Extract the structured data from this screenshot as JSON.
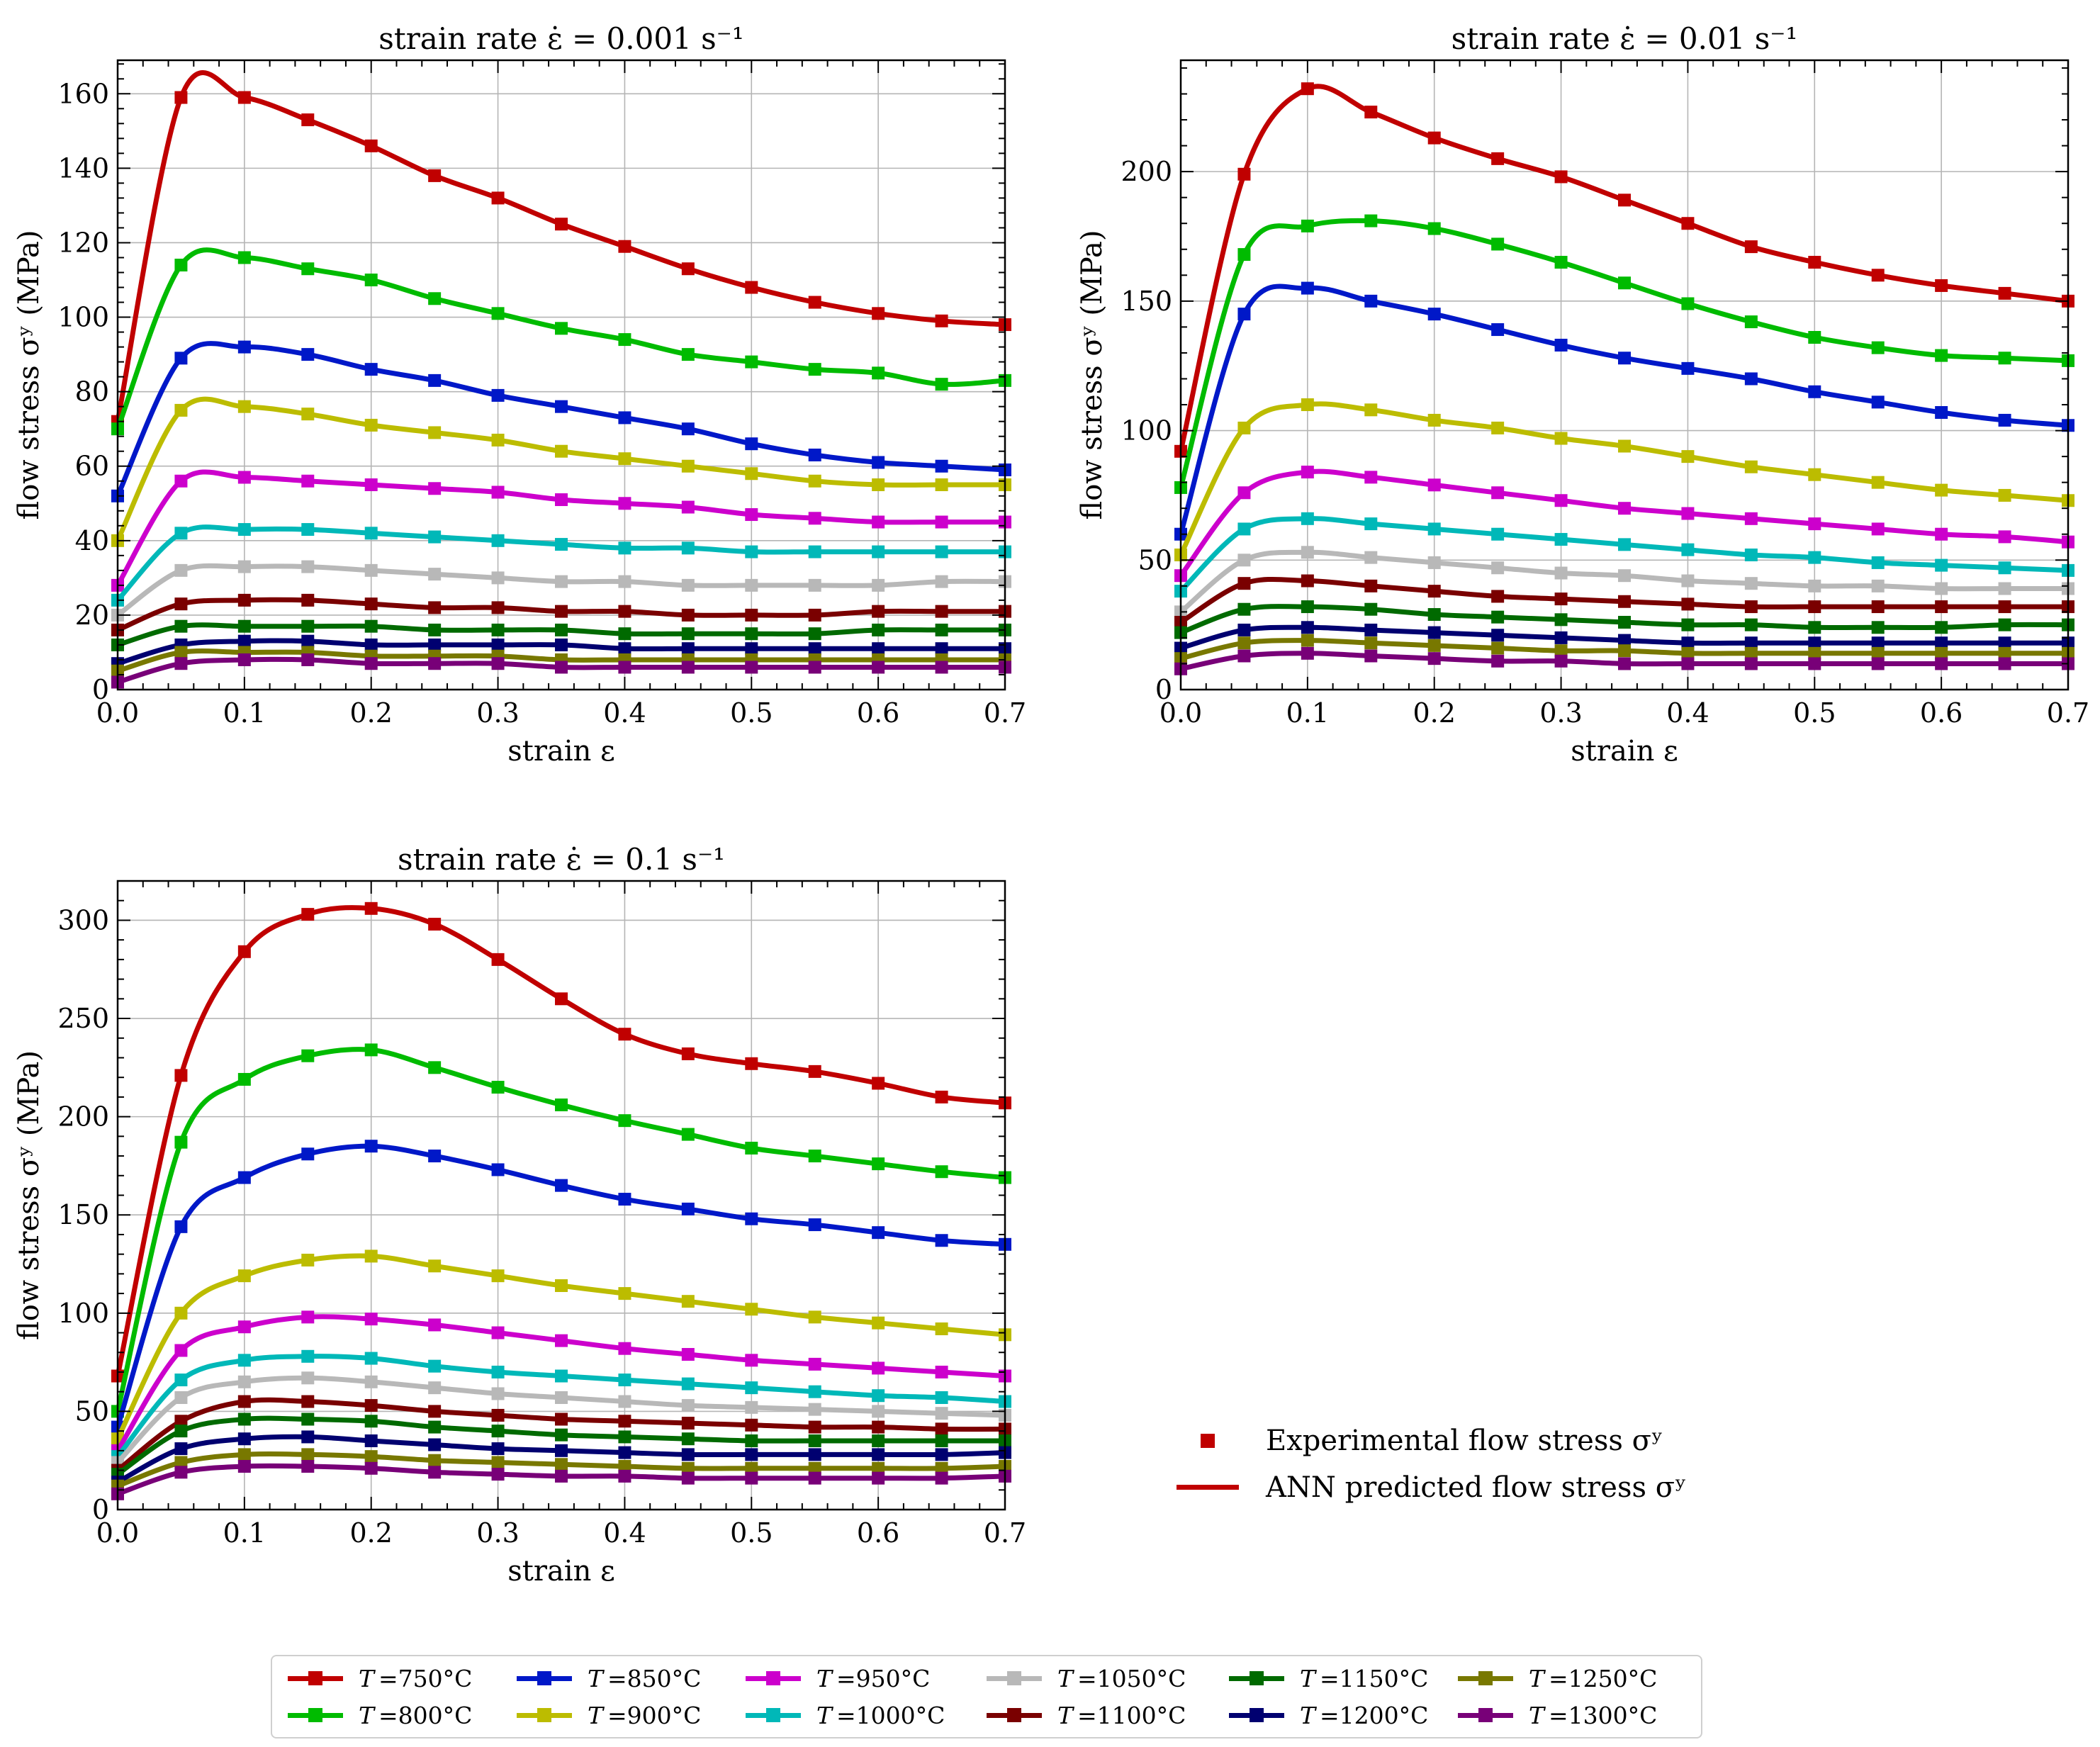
{
  "chart_data": [
    {
      "type": "line",
      "title": "strain rate ε̇ = 0.001 s⁻¹",
      "xlabel": "strain ε",
      "ylabel": "flow stress σʸ (MPa)",
      "xlim": [
        0,
        0.7
      ],
      "ylim": [
        0,
        169
      ],
      "xticks": [
        "0.0",
        "0.1",
        "0.2",
        "0.3",
        "0.4",
        "0.5",
        "0.6",
        "0.7"
      ],
      "yticks": [
        "0",
        "20",
        "40",
        "60",
        "80",
        "100",
        "120",
        "140",
        "160"
      ],
      "ytick_values": [
        0,
        20,
        40,
        60,
        80,
        100,
        120,
        140,
        160
      ],
      "grid": true,
      "x": [
        0,
        0.05,
        0.1,
        0.15,
        0.2,
        0.25,
        0.3,
        0.35,
        0.4,
        0.45,
        0.5,
        0.55,
        0.6,
        0.65,
        0.7
      ],
      "series": [
        {
          "name": "T =750°C",
          "values": [
            72,
            159,
            159,
            153,
            146,
            138,
            132,
            125,
            119,
            113,
            108,
            104,
            101,
            99,
            98
          ]
        },
        {
          "name": "T =800°C",
          "values": [
            70,
            114,
            116,
            113,
            110,
            105,
            101,
            97,
            94,
            90,
            88,
            86,
            85,
            82,
            83
          ]
        },
        {
          "name": "T =850°C",
          "values": [
            52,
            89,
            92,
            90,
            86,
            83,
            79,
            76,
            73,
            70,
            66,
            63,
            61,
            60,
            59
          ]
        },
        {
          "name": "T =900°C",
          "values": [
            40,
            75,
            76,
            74,
            71,
            69,
            67,
            64,
            62,
            60,
            58,
            56,
            55,
            55,
            55
          ]
        },
        {
          "name": "T =950°C",
          "values": [
            28,
            56,
            57,
            56,
            55,
            54,
            53,
            51,
            50,
            49,
            47,
            46,
            45,
            45,
            45
          ]
        },
        {
          "name": "T =1000°C",
          "values": [
            24,
            42,
            43,
            43,
            42,
            41,
            40,
            39,
            38,
            38,
            37,
            37,
            37,
            37,
            37
          ]
        },
        {
          "name": "T =1050°C",
          "values": [
            20,
            32,
            33,
            33,
            32,
            31,
            30,
            29,
            29,
            28,
            28,
            28,
            28,
            29,
            29
          ]
        },
        {
          "name": "T =1100°C",
          "values": [
            16,
            23,
            24,
            24,
            23,
            22,
            22,
            21,
            21,
            20,
            20,
            20,
            21,
            21,
            21
          ]
        },
        {
          "name": "T =1150°C",
          "values": [
            12,
            17,
            17,
            17,
            17,
            16,
            16,
            16,
            15,
            15,
            15,
            15,
            16,
            16,
            16
          ]
        },
        {
          "name": "T =1200°C",
          "values": [
            7,
            12,
            13,
            13,
            12,
            12,
            12,
            12,
            11,
            11,
            11,
            11,
            11,
            11,
            11
          ]
        },
        {
          "name": "T =1250°C",
          "values": [
            5,
            10,
            10,
            10,
            9,
            9,
            9,
            8,
            8,
            8,
            8,
            8,
            8,
            8,
            8
          ]
        },
        {
          "name": "T =1300°C",
          "values": [
            2,
            7,
            8,
            8,
            7,
            7,
            7,
            6,
            6,
            6,
            6,
            6,
            6,
            6,
            6
          ]
        }
      ]
    },
    {
      "type": "line",
      "title": "strain rate ε̇ = 0.01 s⁻¹",
      "xlabel": "strain ε",
      "ylabel": "flow stress σʸ (MPa)",
      "xlim": [
        0,
        0.7
      ],
      "ylim": [
        0,
        243
      ],
      "xticks": [
        "0.0",
        "0.1",
        "0.2",
        "0.3",
        "0.4",
        "0.5",
        "0.6",
        "0.7"
      ],
      "yticks": [
        "0",
        "50",
        "100",
        "150",
        "200"
      ],
      "ytick_values": [
        0,
        50,
        100,
        150,
        200
      ],
      "grid": true,
      "x": [
        0,
        0.05,
        0.1,
        0.15,
        0.2,
        0.25,
        0.3,
        0.35,
        0.4,
        0.45,
        0.5,
        0.55,
        0.6,
        0.65,
        0.7
      ],
      "series": [
        {
          "name": "T =750°C",
          "values": [
            92,
            199,
            232,
            223,
            213,
            205,
            198,
            189,
            180,
            171,
            165,
            160,
            156,
            153,
            150
          ]
        },
        {
          "name": "T =800°C",
          "values": [
            78,
            168,
            179,
            181,
            178,
            172,
            165,
            157,
            149,
            142,
            136,
            132,
            129,
            128,
            127
          ]
        },
        {
          "name": "T =850°C",
          "values": [
            60,
            145,
            155,
            150,
            145,
            139,
            133,
            128,
            124,
            120,
            115,
            111,
            107,
            104,
            102
          ]
        },
        {
          "name": "T =900°C",
          "values": [
            52,
            101,
            110,
            108,
            104,
            101,
            97,
            94,
            90,
            86,
            83,
            80,
            77,
            75,
            73
          ]
        },
        {
          "name": "T =950°C",
          "values": [
            44,
            76,
            84,
            82,
            79,
            76,
            73,
            70,
            68,
            66,
            64,
            62,
            60,
            59,
            57
          ]
        },
        {
          "name": "T =1000°C",
          "values": [
            38,
            62,
            66,
            64,
            62,
            60,
            58,
            56,
            54,
            52,
            51,
            49,
            48,
            47,
            46
          ]
        },
        {
          "name": "T =1050°C",
          "values": [
            30,
            50,
            53,
            51,
            49,
            47,
            45,
            44,
            42,
            41,
            40,
            40,
            39,
            39,
            39
          ]
        },
        {
          "name": "T =1100°C",
          "values": [
            26,
            41,
            42,
            40,
            38,
            36,
            35,
            34,
            33,
            32,
            32,
            32,
            32,
            32,
            32
          ]
        },
        {
          "name": "T =1150°C",
          "values": [
            22,
            31,
            32,
            31,
            29,
            28,
            27,
            26,
            25,
            25,
            24,
            24,
            24,
            25,
            25
          ]
        },
        {
          "name": "T =1200°C",
          "values": [
            16,
            23,
            24,
            23,
            22,
            21,
            20,
            19,
            18,
            18,
            18,
            18,
            18,
            18,
            18
          ]
        },
        {
          "name": "T =1250°C",
          "values": [
            12,
            18,
            19,
            18,
            17,
            16,
            15,
            15,
            14,
            14,
            14,
            14,
            14,
            14,
            14
          ]
        },
        {
          "name": "T =1300°C",
          "values": [
            8,
            13,
            14,
            13,
            12,
            11,
            11,
            10,
            10,
            10,
            10,
            10,
            10,
            10,
            10
          ]
        }
      ]
    },
    {
      "type": "line",
      "title": "strain rate ε̇ = 0.1 s⁻¹",
      "xlabel": "strain ε",
      "ylabel": "flow stress σʸ (MPa)",
      "xlim": [
        0,
        0.7
      ],
      "ylim": [
        0,
        320
      ],
      "xticks": [
        "0.0",
        "0.1",
        "0.2",
        "0.3",
        "0.4",
        "0.5",
        "0.6",
        "0.7"
      ],
      "yticks": [
        "0",
        "50",
        "100",
        "150",
        "200",
        "250",
        "300"
      ],
      "ytick_values": [
        0,
        50,
        100,
        150,
        200,
        250,
        300
      ],
      "grid": true,
      "x": [
        0,
        0.05,
        0.1,
        0.15,
        0.2,
        0.25,
        0.3,
        0.35,
        0.4,
        0.45,
        0.5,
        0.55,
        0.6,
        0.65,
        0.7
      ],
      "series": [
        {
          "name": "T =750°C",
          "values": [
            68,
            221,
            284,
            303,
            306,
            298,
            280,
            260,
            242,
            232,
            227,
            223,
            217,
            210,
            207
          ]
        },
        {
          "name": "T =800°C",
          "values": [
            50,
            187,
            219,
            231,
            234,
            225,
            215,
            206,
            198,
            191,
            184,
            180,
            176,
            172,
            169
          ]
        },
        {
          "name": "T =850°C",
          "values": [
            42,
            144,
            169,
            181,
            185,
            180,
            173,
            165,
            158,
            153,
            148,
            145,
            141,
            137,
            135
          ]
        },
        {
          "name": "T =900°C",
          "values": [
            36,
            100,
            119,
            127,
            129,
            124,
            119,
            114,
            110,
            106,
            102,
            98,
            95,
            92,
            89
          ]
        },
        {
          "name": "T =950°C",
          "values": [
            30,
            81,
            93,
            98,
            97,
            94,
            90,
            86,
            82,
            79,
            76,
            74,
            72,
            70,
            68
          ]
        },
        {
          "name": "T =1000°C",
          "values": [
            27,
            66,
            76,
            78,
            77,
            73,
            70,
            68,
            66,
            64,
            62,
            60,
            58,
            57,
            55
          ]
        },
        {
          "name": "T =1050°C",
          "values": [
            24,
            57,
            65,
            67,
            65,
            62,
            59,
            57,
            55,
            53,
            52,
            51,
            50,
            49,
            48
          ]
        },
        {
          "name": "T =1100°C",
          "values": [
            20,
            45,
            55,
            55,
            53,
            50,
            48,
            46,
            45,
            44,
            43,
            42,
            42,
            41,
            41
          ]
        },
        {
          "name": "T =1150°C",
          "values": [
            18,
            40,
            46,
            46,
            45,
            42,
            40,
            38,
            37,
            36,
            35,
            35,
            35,
            35,
            35
          ]
        },
        {
          "name": "T =1200°C",
          "values": [
            14,
            31,
            36,
            37,
            35,
            33,
            31,
            30,
            29,
            28,
            28,
            28,
            28,
            28,
            29
          ]
        },
        {
          "name": "T =1250°C",
          "values": [
            12,
            24,
            28,
            28,
            27,
            25,
            24,
            23,
            22,
            21,
            21,
            21,
            21,
            21,
            22
          ]
        },
        {
          "name": "T =1300°C",
          "values": [
            8,
            19,
            22,
            22,
            21,
            19,
            18,
            17,
            17,
            16,
            16,
            16,
            16,
            16,
            17
          ]
        }
      ]
    }
  ],
  "series_colors": [
    "#c00000",
    "#00bb00",
    "#0018c8",
    "#bcbc00",
    "#cc00cc",
    "#00b8b8",
    "#b8b8b8",
    "#7a0000",
    "#006a00",
    "#000070",
    "#787800",
    "#780078"
  ],
  "legend": {
    "entries": [
      {
        "symbol": "T",
        "label": "=750°C"
      },
      {
        "symbol": "T",
        "label": "=800°C"
      },
      {
        "symbol": "T",
        "label": "=850°C"
      },
      {
        "symbol": "T",
        "label": "=900°C"
      },
      {
        "symbol": "T",
        "label": "=950°C"
      },
      {
        "symbol": "T",
        "label": "=1000°C"
      },
      {
        "symbol": "T",
        "label": "=1050°C"
      },
      {
        "symbol": "T",
        "label": "=1100°C"
      },
      {
        "symbol": "T",
        "label": "=1150°C"
      },
      {
        "symbol": "T",
        "label": "=1200°C"
      },
      {
        "symbol": "T",
        "label": "=1250°C"
      },
      {
        "symbol": "T",
        "label": "=1300°C"
      }
    ]
  },
  "method_legend": {
    "experimental_label": "Experimental flow stress σʸ",
    "ann_label": "ANN predicted flow stress σʸ",
    "color": "#c00000"
  }
}
